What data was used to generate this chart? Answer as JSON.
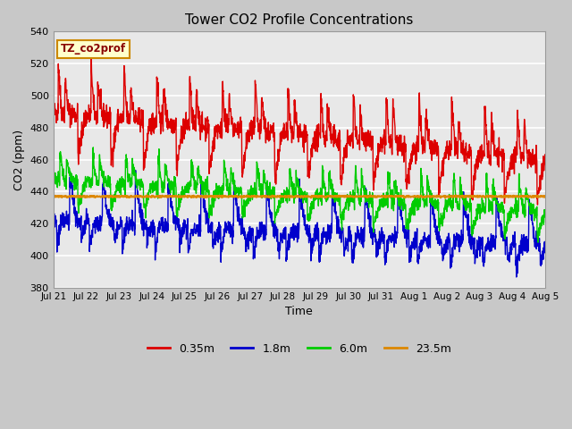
{
  "title": "Tower CO2 Profile Concentrations",
  "xlabel": "Time",
  "ylabel": "CO2 (ppm)",
  "ylim": [
    380,
    540
  ],
  "yticks": [
    380,
    400,
    420,
    440,
    460,
    480,
    500,
    520,
    540
  ],
  "fig_bg_color": "#c8c8c8",
  "plot_bg_color": "#e8e8e8",
  "grid_color": "white",
  "label_tag": "TZ_co2prof",
  "label_tag_color": "#880000",
  "label_tag_bg": "#ffffcc",
  "label_tag_border": "#cc8800",
  "series": {
    "0.35m": {
      "color": "#dd0000",
      "lw": 1.0
    },
    "1.8m": {
      "color": "#0000cc",
      "lw": 1.0
    },
    "6.0m": {
      "color": "#00cc00",
      "lw": 1.0
    },
    "23.5m": {
      "color": "#dd8800",
      "lw": 1.5
    }
  },
  "x_tick_labels": [
    "Jul 21",
    "Jul 22",
    "Jul 23",
    "Jul 24",
    "Jul 25",
    "Jul 26",
    "Jul 27",
    "Jul 28",
    "Jul 29",
    "Jul 30",
    "Jul 31",
    "Aug 1",
    "Aug 2",
    "Aug 3",
    "Aug 4",
    "Aug 5"
  ],
  "seed": 42,
  "n_days": 15,
  "pts_per_day": 144
}
